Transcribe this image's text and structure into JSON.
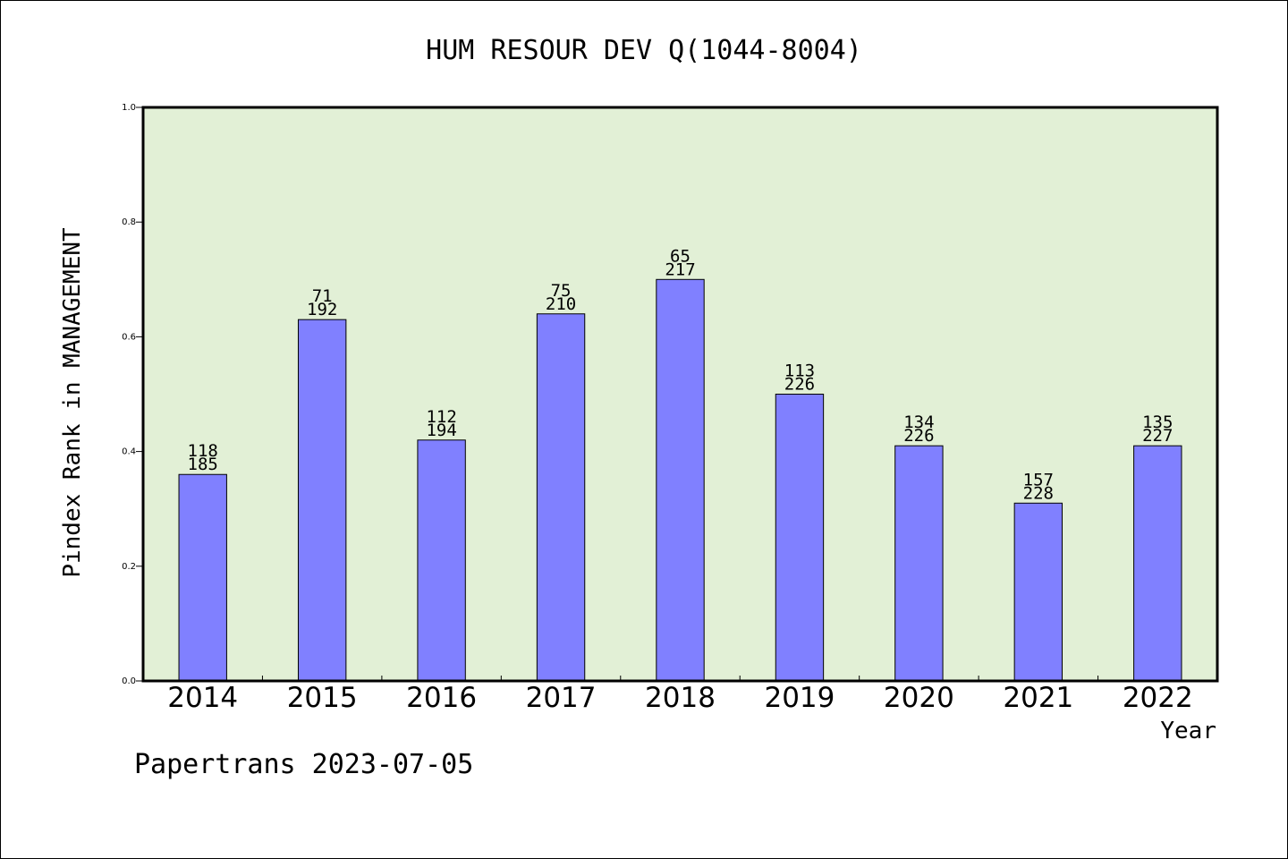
{
  "chart_data": {
    "type": "bar",
    "title": "HUM RESOUR DEV Q(1044-8004)",
    "xlabel": "Year",
    "ylabel": "Pindex Rank in MANAGEMENT",
    "footer": "Papertrans 2023-07-05",
    "ylim": [
      0,
      1.0
    ],
    "yticks": [
      "0.0",
      "0.2",
      "0.4",
      "0.6",
      "0.8",
      "1.0"
    ],
    "categories": [
      "2014",
      "2015",
      "2016",
      "2017",
      "2018",
      "2019",
      "2020",
      "2021",
      "2022"
    ],
    "values": [
      0.36,
      0.63,
      0.42,
      0.64,
      0.7,
      0.5,
      0.41,
      0.31,
      0.41
    ],
    "rank_labels": [
      "118",
      "71",
      "112",
      "75",
      "65",
      "113",
      "134",
      "157",
      "135"
    ],
    "total_labels": [
      "185",
      "192",
      "194",
      "210",
      "217",
      "226",
      "226",
      "228",
      "227"
    ],
    "grid": false,
    "legend": "none",
    "colors": {
      "plot_background": "#e2f0d6",
      "bar_fill": "#8080ff",
      "bar_stroke": "#000000"
    }
  }
}
